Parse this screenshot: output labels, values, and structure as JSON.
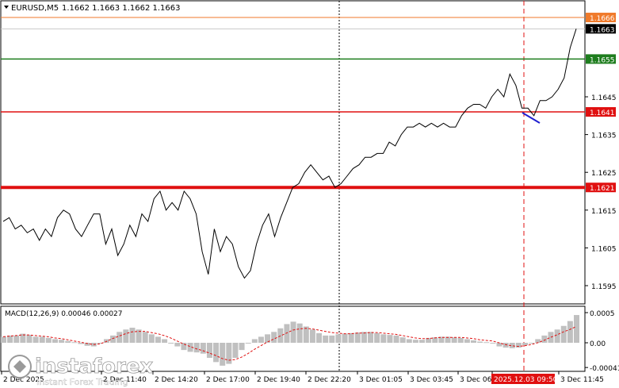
{
  "header": {
    "symbol_label": "EURUSD,M5",
    "ohlc": "1.1662 1.1663 1.1662 1.1663"
  },
  "price_axis": {
    "ticks": [
      "1.1645",
      "1.1635",
      "1.1625",
      "1.1615",
      "1.1605",
      "1.1595"
    ]
  },
  "levels": [
    {
      "name": "orange-level",
      "label": "1.1666",
      "value": 1.1666,
      "color": "#f07a2a"
    },
    {
      "name": "current-price",
      "label": "1.1663",
      "value": 1.1663,
      "color": "#000000"
    },
    {
      "name": "green-level",
      "label": "1.1655",
      "value": 1.1655,
      "color": "#1e7d1e"
    },
    {
      "name": "red-level-upper",
      "label": "1.1641",
      "value": 1.1641,
      "color": "#e01010"
    },
    {
      "name": "red-level-lower",
      "label": "1.1621",
      "value": 1.1621,
      "color": "#e01010"
    }
  ],
  "time_axis": {
    "ticks": [
      "2 Dec 2025",
      "2 Dec 11:40",
      "2 Dec 14:20",
      "2 Dec 17:00",
      "2 Dec 19:40",
      "2 Dec 22:20",
      "3 Dec 01:05",
      "3 Dec 03:45",
      "3 Dec 06:25",
      "2025.12.03 09:50",
      "3 Dec 11:45"
    ],
    "highlight": "2025.12.03 09:50"
  },
  "macd": {
    "label": "MACD(12,26,9) 0.00046 0.00027",
    "ticks": [
      "0.0005",
      "0.00",
      "-0.00041"
    ]
  },
  "watermark": {
    "brand": "instaforex",
    "tagline": "Instant Forex Trading"
  },
  "colors": {
    "price_line": "#000000",
    "macd_hist": "#c0c0c0",
    "signal": "#e01010",
    "trend_segment": "#1f1fd0",
    "grid": "#cfcfcf"
  },
  "chart_data": {
    "type": "line",
    "series_values": [
      1.1612,
      1.1613,
      1.161,
      1.1611,
      1.1609,
      1.161,
      1.1607,
      1.161,
      1.1608,
      1.1613,
      1.1615,
      1.1614,
      1.161,
      1.1608,
      1.1611,
      1.1614,
      1.1614,
      1.1606,
      1.161,
      1.1603,
      1.1606,
      1.1611,
      1.1608,
      1.1614,
      1.1612,
      1.1618,
      1.162,
      1.1615,
      1.1617,
      1.1615,
      1.162,
      1.1618,
      1.1614,
      1.1604,
      1.1598,
      1.161,
      1.1604,
      1.1608,
      1.1606,
      1.16,
      1.1597,
      1.1599,
      1.1606,
      1.1611,
      1.1614,
      1.1608,
      1.1613,
      1.1617,
      1.1621,
      1.1622,
      1.1625,
      1.1627,
      1.1625,
      1.1623,
      1.1624,
      1.1621,
      1.1622,
      1.1624,
      1.1626,
      1.1627,
      1.1629,
      1.1629,
      1.163,
      1.163,
      1.1633,
      1.1632,
      1.1635,
      1.1637,
      1.1637,
      1.1638,
      1.1637,
      1.1638,
      1.1637,
      1.1638,
      1.1637,
      1.1637,
      1.164,
      1.1642,
      1.1643,
      1.1643,
      1.1642,
      1.1645,
      1.1647,
      1.1645,
      1.1651,
      1.1648,
      1.1642,
      1.1642,
      1.164,
      1.1644,
      1.1644,
      1.1645,
      1.1647,
      1.165,
      1.1658,
      1.1663
    ],
    "macd_hist": [
      0.0001,
      0.00012,
      0.00012,
      0.00015,
      0.00013,
      0.0001,
      0.0001,
      8e-05,
      6e-05,
      5e-05,
      3e-05,
      1e-05,
      -2e-05,
      -5e-05,
      -6e-05,
      0,
      6e-05,
      0.00012,
      0.00018,
      0.00022,
      0.00025,
      0.00022,
      0.00018,
      0.00014,
      0.0001,
      6e-05,
      0.0,
      -6e-05,
      -0.00012,
      -0.00015,
      -0.00016,
      -0.00018,
      -0.00025,
      -0.00032,
      -0.00038,
      -0.00035,
      -0.00025,
      -0.00012,
      0.0,
      6e-05,
      0.0001,
      0.00014,
      0.00018,
      0.00024,
      0.00031,
      0.00035,
      0.00032,
      0.00027,
      0.00022,
      0.00016,
      0.00012,
      0.00012,
      0.00014,
      0.00015,
      0.00016,
      0.00017,
      0.00018,
      0.00018,
      0.00016,
      0.00014,
      0.00013,
      0.00012,
      9e-05,
      6e-05,
      5e-05,
      5e-05,
      8e-05,
      9e-05,
      0.0001,
      0.0001,
      9e-05,
      8e-05,
      6e-05,
      4e-05,
      2e-05,
      1e-05,
      0.0,
      -6e-05,
      -8e-05,
      -9e-05,
      -8e-05,
      -4e-05,
      0.0,
      6e-05,
      0.00012,
      0.00018,
      0.00022,
      0.00028,
      0.00036,
      0.00046
    ],
    "macd_signal": [
      0.0001,
      0.00011,
      0.00012,
      0.00013,
      0.00013,
      0.00012,
      0.00011,
      0.0001,
      8e-05,
      7e-05,
      5e-05,
      3e-05,
      1e-05,
      -1e-05,
      -3e-05,
      -2e-05,
      2e-05,
      7e-05,
      0.00011,
      0.00015,
      0.00018,
      0.00019,
      0.00019,
      0.00017,
      0.00015,
      0.00012,
      8e-05,
      3e-05,
      -2e-05,
      -6e-05,
      -0.0001,
      -0.00013,
      -0.00017,
      -0.00021,
      -0.00026,
      -0.00029,
      -0.00028,
      -0.00024,
      -0.00018,
      -0.00011,
      -5e-05,
      1e-05,
      6e-05,
      0.00011,
      0.00016,
      0.00021,
      0.00023,
      0.00024,
      0.00023,
      0.00021,
      0.00019,
      0.00017,
      0.00016,
      0.00015,
      0.00015,
      0.00016,
      0.00016,
      0.00017,
      0.00017,
      0.00016,
      0.00015,
      0.00014,
      0.00012,
      0.0001,
      8e-05,
      7e-05,
      7e-05,
      8e-05,
      9e-05,
      9e-05,
      9e-05,
      9e-05,
      8e-05,
      7e-05,
      5e-05,
      4e-05,
      3e-05,
      0.0,
      -3e-05,
      -5e-05,
      -6e-05,
      -5e-05,
      -3e-05,
      0.0,
      4e-05,
      9e-05,
      0.00013,
      0.00018,
      0.00022,
      0.00027
    ]
  }
}
